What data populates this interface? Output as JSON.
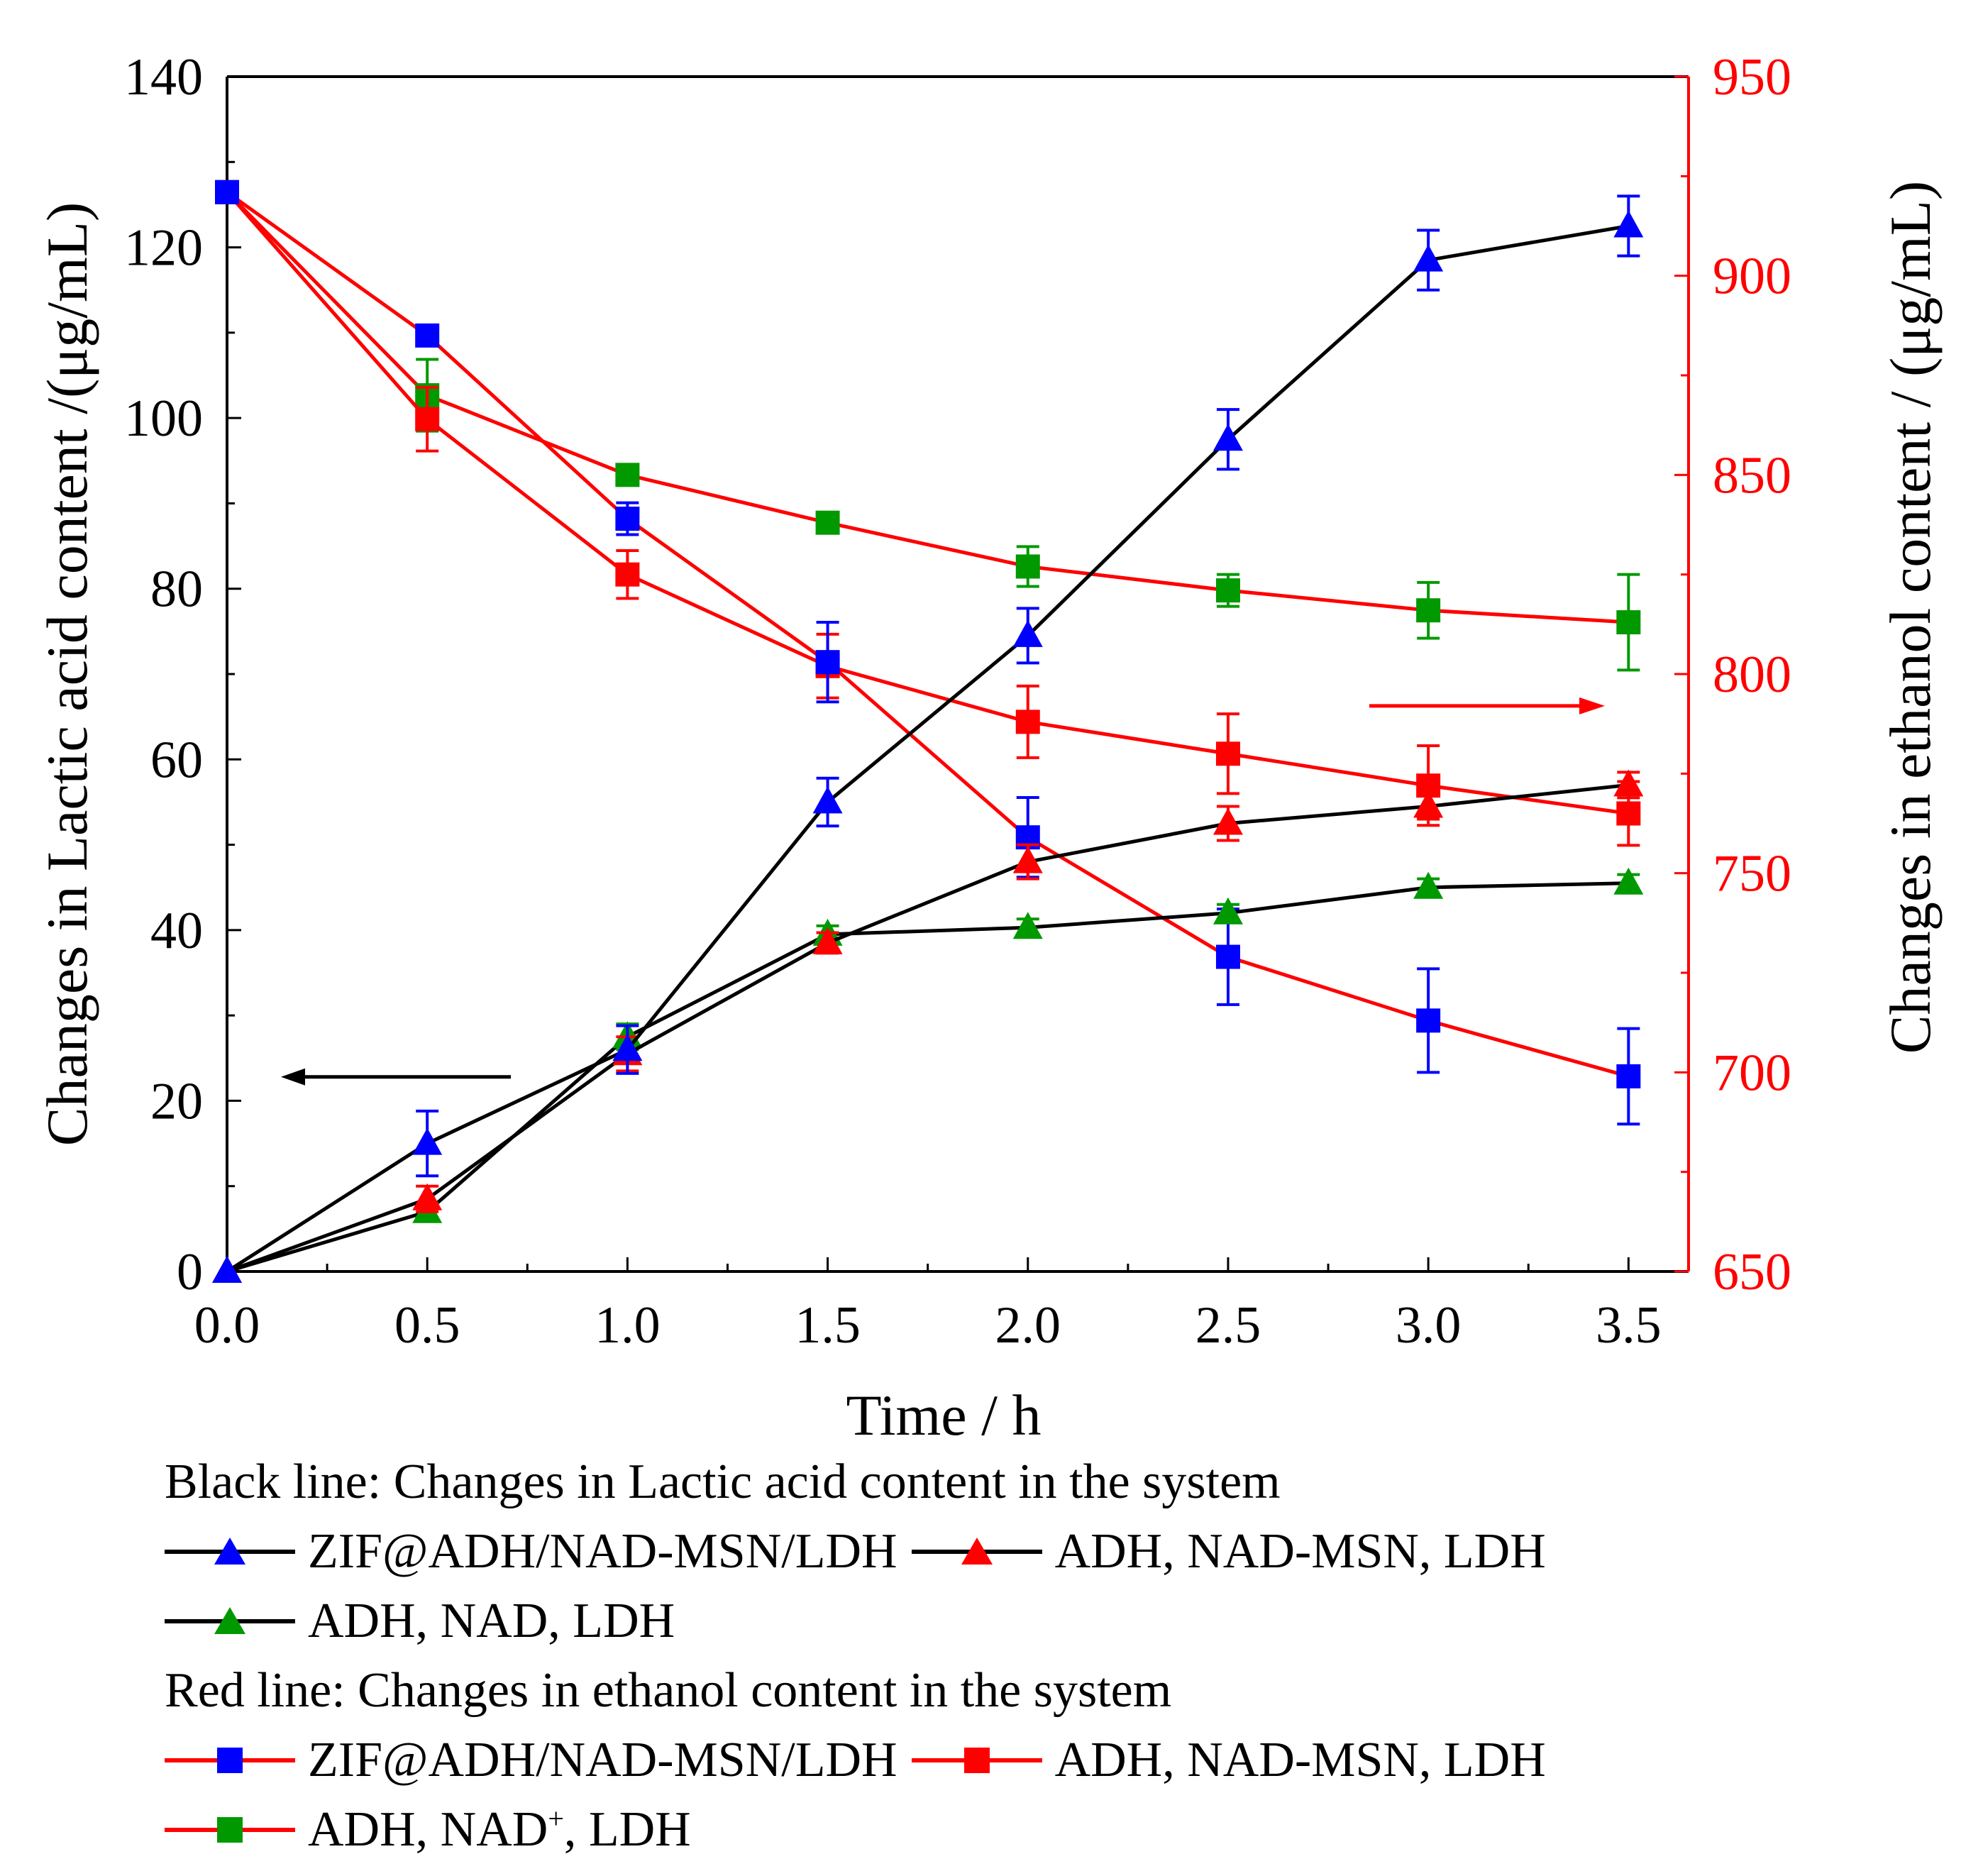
{
  "chart_data": {
    "type": "line",
    "xlabel": "Time / h",
    "ylabel_left": "Changes in Lactic acid content /(μg/mL)",
    "ylabel_right": "Changes in ethanol content / (μg/mL)",
    "x_ticks": [
      "0.0",
      "0.5",
      "1.0",
      "1.5",
      "2.0",
      "2.5",
      "3.0",
      "3.5"
    ],
    "y_left_ticks": [
      "0",
      "20",
      "40",
      "60",
      "80",
      "100",
      "120",
      "140"
    ],
    "y_right_ticks": [
      "650",
      "700",
      "750",
      "800",
      "850",
      "900",
      "950"
    ],
    "xlim": [
      0,
      3.65
    ],
    "ylim_left": [
      0,
      140
    ],
    "ylim_right": [
      650,
      950
    ],
    "x": [
      0,
      0.5,
      1.0,
      1.5,
      2.0,
      2.5,
      3.0,
      3.5
    ],
    "colors": {
      "axis_left": "#000000",
      "axis_right": "#ff0000",
      "blue": "#0000ff",
      "red": "#ff0000",
      "green": "#009900",
      "line_black": "#000000",
      "line_red": "#ff0000"
    },
    "series": [
      {
        "name": "ZIF@ADH/NAD-MSN/LDH",
        "axis": "left",
        "line": "black",
        "marker": "triangle",
        "color": "blue",
        "values": [
          0,
          15,
          26,
          55,
          74.5,
          97.5,
          118.5,
          122.5
        ],
        "errors": [
          0,
          3.8,
          2.8,
          2.8,
          3.2,
          3.5,
          3.5,
          3.5
        ]
      },
      {
        "name": "ADH, NAD-MSN, LDH",
        "axis": "left",
        "line": "black",
        "marker": "triangle",
        "color": "red",
        "values": [
          0,
          8.5,
          25.5,
          38.5,
          48,
          52.5,
          54.5,
          57
        ],
        "errors": [
          0,
          1.5,
          2,
          1.2,
          2,
          2,
          1.5,
          1.5
        ]
      },
      {
        "name": "ADH, NAD, LDH",
        "axis": "left",
        "line": "black",
        "marker": "triangle",
        "color": "green",
        "values": [
          0,
          7,
          27.5,
          39.5,
          40.3,
          42,
          45,
          45.5
        ],
        "errors": [
          0,
          1,
          1.5,
          1,
          1,
          1,
          1,
          1
        ]
      },
      {
        "name": "ZIF@ADH/NAD-MSN/LDH",
        "axis": "right",
        "line": "red",
        "marker": "square",
        "color": "blue",
        "values": [
          921,
          885,
          839,
          803,
          759,
          729,
          713,
          699
        ],
        "errors": [
          0,
          0,
          4,
          10,
          10,
          12,
          13,
          12
        ]
      },
      {
        "name": "ADH, NAD-MSN, LDH",
        "axis": "right",
        "line": "red",
        "marker": "square",
        "color": "red",
        "values": [
          921,
          864,
          825,
          802,
          788,
          780,
          772,
          765
        ],
        "errors": [
          0,
          8,
          6,
          8,
          9,
          10,
          10,
          8
        ]
      },
      {
        "name": "ADH, NAD+, LDH",
        "axis": "right",
        "line": "red",
        "marker": "square",
        "color": "green",
        "values": [
          921,
          870,
          850,
          838,
          827,
          821,
          816,
          813
        ],
        "errors": [
          0,
          9,
          0,
          0,
          5,
          4,
          7,
          12
        ]
      }
    ]
  },
  "legend": {
    "black_title": "Black line: Changes in Lactic acid content in the system",
    "red_title": "Red line: Changes in ethanol content in the system",
    "black_items": [
      "ZIF@ADH/NAD-MSN/LDH",
      "ADH, NAD-MSN, LDH",
      "ADH, NAD, LDH"
    ],
    "red_items": [
      "ZIF@ADH/NAD-MSN/LDH",
      "ADH, NAD-MSN, LDH",
      "ADH, NAD",
      "+",
      ", LDH"
    ]
  }
}
